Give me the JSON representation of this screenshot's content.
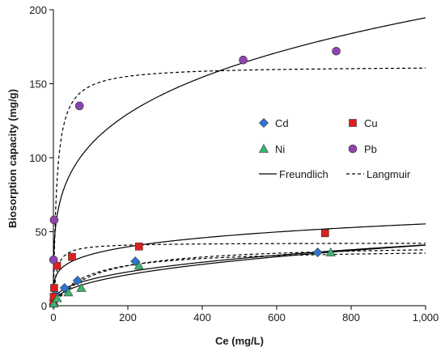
{
  "chart_data": {
    "type": "scatter",
    "title": "",
    "xlabel": "Ce (mg/L)",
    "ylabel": "Biosorption capacity (mg/g)",
    "xlim": [
      0,
      1000
    ],
    "ylim": [
      0,
      200
    ],
    "x_ticks": [
      0,
      200,
      400,
      600,
      800,
      1000
    ],
    "x_tick_labels": [
      "0",
      "200",
      "400",
      "600",
      "800",
      "1,000"
    ],
    "y_ticks": [
      0,
      50,
      100,
      150,
      200
    ],
    "y_tick_labels": [
      "0",
      "50",
      "100",
      "150",
      "200"
    ],
    "grid": false,
    "legend_position": "inside-right",
    "series": [
      {
        "name": "Cd",
        "marker": "diamond",
        "color": "#2e75d6",
        "points": [
          [
            0.5,
            1
          ],
          [
            2,
            4
          ],
          [
            6,
            8
          ],
          [
            30,
            12
          ],
          [
            65,
            17
          ],
          [
            220,
            30
          ],
          [
            710,
            36
          ]
        ],
        "freundlich": {
          "k": 3.3,
          "n": 2.74
        },
        "langmuir": {
          "qmax": 38.5,
          "b": 0.012
        }
      },
      {
        "name": "Cu",
        "marker": "square",
        "color": "#e01e1e",
        "points": [
          [
            0.3,
            2
          ],
          [
            1,
            6
          ],
          [
            2,
            12
          ],
          [
            10,
            27
          ],
          [
            50,
            33
          ],
          [
            230,
            40
          ],
          [
            730,
            49
          ]
        ],
        "freundlich": {
          "k": 13.5,
          "n": 4.9
        },
        "langmuir": {
          "qmax": 42.5,
          "b": 0.13
        }
      },
      {
        "name": "Ni",
        "marker": "triangle",
        "color": "#3cb371",
        "points": [
          [
            1,
            1.5
          ],
          [
            10,
            5
          ],
          [
            40,
            9
          ],
          [
            75,
            12
          ],
          [
            230,
            27
          ],
          [
            745,
            36
          ]
        ],
        "freundlich": {
          "k": 2.3,
          "n": 2.4
        },
        "langmuir": {
          "qmax": 42,
          "b": 0.009
        }
      },
      {
        "name": "Pb",
        "marker": "circle",
        "color": "#8e44ad",
        "points": [
          [
            0.5,
            31
          ],
          [
            2,
            58
          ],
          [
            70,
            135
          ],
          [
            510,
            166
          ],
          [
            760,
            172
          ]
        ],
        "freundlich": {
          "k": 34,
          "n": 3.96
        },
        "langmuir": {
          "qmax": 162,
          "b": 0.11
        }
      }
    ],
    "line_legend": [
      {
        "name": "Freundlich",
        "style": "solid"
      },
      {
        "name": "Langmuir",
        "style": "dashed"
      }
    ]
  }
}
